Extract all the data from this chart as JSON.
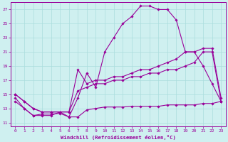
{
  "xlabel": "Windchill (Refroidissement éolien,°C)",
  "background_color": "#cff0f0",
  "grid_color": "#aadddd",
  "line_color": "#990099",
  "xlim": [
    -0.5,
    23.5
  ],
  "ylim": [
    10.5,
    28.0
  ],
  "yticks": [
    11,
    13,
    15,
    17,
    19,
    21,
    23,
    25,
    27
  ],
  "xticks": [
    0,
    1,
    2,
    3,
    4,
    5,
    6,
    7,
    8,
    9,
    10,
    11,
    12,
    13,
    14,
    15,
    16,
    17,
    18,
    19,
    20,
    21,
    22,
    23
  ],
  "series1_x": [
    0,
    1,
    2,
    3,
    4,
    5,
    6,
    7,
    8,
    9,
    10,
    11,
    12,
    13,
    14,
    15,
    16,
    17,
    18,
    19,
    20,
    21,
    22,
    23
  ],
  "series1_y": [
    14.0,
    13.0,
    12.0,
    12.2,
    12.2,
    12.3,
    11.8,
    11.8,
    12.8,
    13.0,
    13.2,
    13.2,
    13.2,
    13.3,
    13.3,
    13.3,
    13.3,
    13.5,
    13.5,
    13.5,
    13.5,
    13.7,
    13.7,
    14.0
  ],
  "series2_x": [
    0,
    1,
    2,
    3,
    4,
    5,
    6,
    7,
    8,
    9,
    10,
    11,
    12,
    13,
    14,
    15,
    16,
    17,
    18,
    19,
    20,
    21,
    22,
    23
  ],
  "series2_y": [
    15.0,
    14.0,
    13.0,
    12.5,
    12.5,
    12.5,
    12.5,
    15.5,
    16.0,
    16.5,
    16.5,
    17.0,
    17.0,
    17.5,
    17.5,
    18.0,
    18.0,
    18.5,
    18.5,
    19.0,
    19.5,
    21.0,
    21.0,
    14.0
  ],
  "series3_x": [
    0,
    1,
    2,
    3,
    4,
    5,
    6,
    7,
    8,
    9,
    10,
    11,
    12,
    13,
    14,
    15,
    16,
    17,
    18,
    19,
    20,
    21,
    22,
    23
  ],
  "series3_y": [
    15.0,
    14.0,
    13.0,
    12.5,
    12.5,
    12.5,
    12.5,
    18.5,
    16.5,
    17.0,
    17.0,
    17.5,
    17.5,
    18.0,
    18.5,
    18.5,
    19.0,
    19.5,
    20.0,
    21.0,
    21.0,
    21.5,
    21.5,
    14.5
  ],
  "series4_x": [
    0,
    1,
    2,
    3,
    4,
    5,
    6,
    7,
    8,
    9,
    10,
    11,
    12,
    13,
    14,
    15,
    16,
    17,
    18,
    19,
    20,
    21,
    22,
    23
  ],
  "series4_y": [
    14.5,
    13.0,
    12.0,
    12.0,
    12.0,
    12.5,
    11.8,
    14.5,
    18.0,
    16.0,
    21.0,
    23.0,
    25.0,
    26.0,
    27.5,
    27.5,
    27.0,
    27.0,
    25.5,
    21.0,
    21.0,
    19.0,
    16.5,
    14.0
  ],
  "marker": "D",
  "markersize": 1.8,
  "linewidth": 0.8
}
